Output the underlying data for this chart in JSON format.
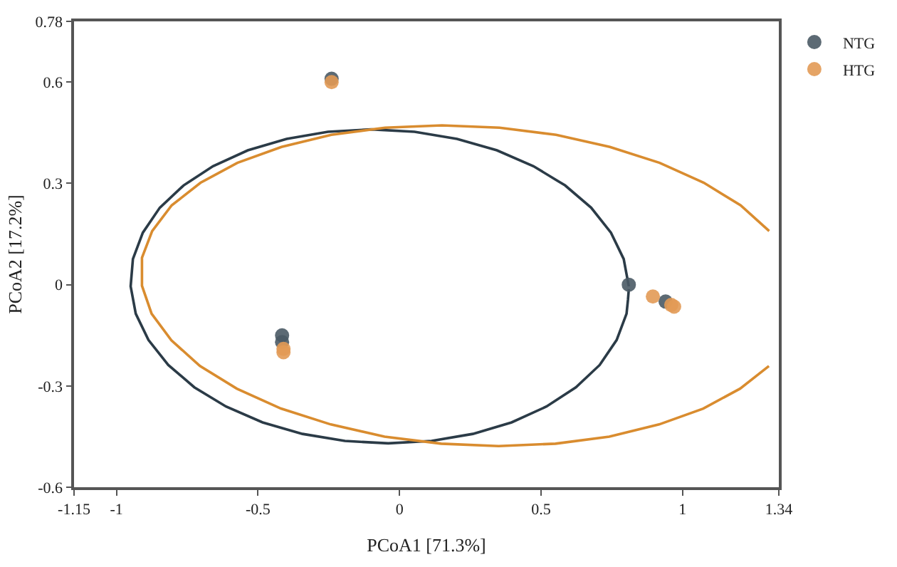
{
  "chart_data": {
    "type": "scatter",
    "xlabel": "PCoA1 [71.3%]",
    "ylabel": "PCoA2 [17.2%]",
    "xlim": [
      -1.15,
      1.34
    ],
    "xticks": [
      -1.15,
      -1,
      -0.5,
      0,
      0.5,
      1,
      1.34
    ],
    "ylim": [
      -0.6,
      0.78
    ],
    "yticks": [
      -0.6,
      -0.3,
      0,
      0.3,
      0.6,
      0.78
    ],
    "legend": "top right",
    "series": [
      {
        "type": "line",
        "marker": "none",
        "color": "#2b3b47",
        "x": [
          0.81,
          0.792,
          0.747,
          0.677,
          0.585,
          0.473,
          0.344,
          0.203,
          0.053,
          -0.1,
          -0.253,
          -0.399,
          -0.536,
          -0.659,
          -0.763,
          -0.847,
          -0.907,
          -0.942,
          -0.95,
          -0.932,
          -0.887,
          -0.817,
          -0.725,
          -0.613,
          -0.484,
          -0.343,
          -0.193,
          -0.04,
          0.113,
          0.259,
          0.396,
          0.519,
          0.623,
          0.707,
          0.767,
          0.802,
          0.807,
          0.81
        ],
        "values": [
          -0.005,
          0.076,
          0.154,
          0.228,
          0.294,
          0.351,
          0.398,
          0.432,
          0.453,
          0.46,
          0.453,
          0.432,
          0.398,
          0.351,
          0.294,
          0.228,
          0.154,
          0.076,
          -0.005,
          -0.086,
          -0.164,
          -0.238,
          -0.304,
          -0.361,
          -0.408,
          -0.442,
          -0.463,
          -0.47,
          -0.463,
          -0.442,
          -0.408,
          -0.361,
          -0.304,
          -0.238,
          -0.164,
          -0.086,
          -0.045,
          -0.013
        ]
      },
      {
        "type": "line",
        "marker": "none",
        "color": "#d98c2f",
        "x": [
          1.306,
          1.205,
          1.075,
          0.919,
          0.743,
          0.553,
          0.353,
          0.15,
          -0.051,
          -0.241,
          -0.417,
          -0.573,
          -0.703,
          -0.805,
          -0.874,
          -0.91,
          -0.91,
          -0.876,
          -0.806,
          -0.705,
          -0.575,
          -0.419,
          -0.243,
          -0.053,
          0.147,
          0.35,
          0.551,
          0.741,
          0.917,
          1.073,
          1.203,
          1.305
        ],
        "values": [
          0.159,
          0.235,
          0.302,
          0.361,
          0.408,
          0.444,
          0.465,
          0.472,
          0.465,
          0.444,
          0.408,
          0.361,
          0.302,
          0.235,
          0.159,
          0.08,
          -0.003,
          -0.086,
          -0.165,
          -0.241,
          -0.308,
          -0.367,
          -0.414,
          -0.45,
          -0.471,
          -0.478,
          -0.471,
          -0.45,
          -0.414,
          -0.367,
          -0.308,
          -0.241
        ]
      },
      {
        "name": "NTG",
        "marker": "circle",
        "color": "#4a5a65",
        "x": [
          -0.24,
          -0.415,
          -0.415,
          0.81,
          0.94
        ],
        "values": [
          0.61,
          -0.15,
          -0.17,
          0,
          -0.05
        ]
      },
      {
        "name": "HTG",
        "marker": "circle",
        "color": "#e29a55",
        "x": [
          -0.24,
          -0.41,
          -0.41,
          0.895,
          0.96,
          0.97
        ],
        "values": [
          0.6,
          -0.19,
          -0.2,
          -0.035,
          -0.06,
          -0.065
        ]
      }
    ]
  }
}
